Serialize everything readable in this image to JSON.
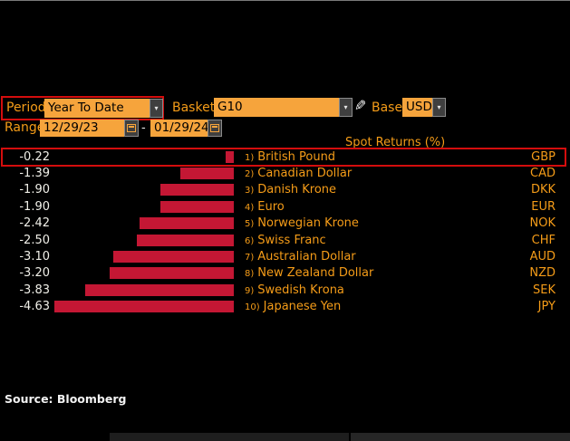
{
  "controls": {
    "period_label": "Period",
    "period_value": "Year To Date",
    "basket_label": "Basket",
    "basket_value": "G10",
    "base_label": "Base",
    "base_value": "USD",
    "range_label": "Range",
    "range_start": "12/29/23",
    "range_separator": "-",
    "range_end": "01/29/24"
  },
  "chart_data": {
    "type": "bar",
    "orientation": "horizontal",
    "title": "Spot Returns (%)",
    "xlim": [
      -5,
      0
    ],
    "highlighted": "GBP",
    "rows": [
      {
        "rank": "1)",
        "name": "British Pound",
        "code": "GBP",
        "value": -0.22,
        "display": "-0.22"
      },
      {
        "rank": "2)",
        "name": "Canadian Dollar",
        "code": "CAD",
        "value": -1.39,
        "display": "-1.39"
      },
      {
        "rank": "3)",
        "name": "Danish Krone",
        "code": "DKK",
        "value": -1.9,
        "display": "-1.90"
      },
      {
        "rank": "4)",
        "name": "Euro",
        "code": "EUR",
        "value": -1.9,
        "display": "-1.90"
      },
      {
        "rank": "5)",
        "name": "Norwegian Krone",
        "code": "NOK",
        "value": -2.42,
        "display": "-2.42"
      },
      {
        "rank": "6)",
        "name": "Swiss Franc",
        "code": "CHF",
        "value": -2.5,
        "display": "-2.50"
      },
      {
        "rank": "7)",
        "name": "Australian Dollar",
        "code": "AUD",
        "value": -3.1,
        "display": "-3.10"
      },
      {
        "rank": "8)",
        "name": "New Zealand Dollar",
        "code": "NZD",
        "value": -3.2,
        "display": "-3.20"
      },
      {
        "rank": "9)",
        "name": "Swedish Krona",
        "code": "SEK",
        "value": -3.83,
        "display": "-3.83"
      },
      {
        "rank": "10)",
        "name": "Japanese Yen",
        "code": "JPY",
        "value": -4.63,
        "display": "-4.63"
      }
    ]
  },
  "footer": {
    "source": "Source: Bloomberg"
  },
  "colors": {
    "background": "#000000",
    "amber": "#f6a43c",
    "orange_text": "#f59c18",
    "bar_red": "#c41734",
    "highlight_border": "#d40d0d",
    "value_text": "#f0efe8"
  }
}
